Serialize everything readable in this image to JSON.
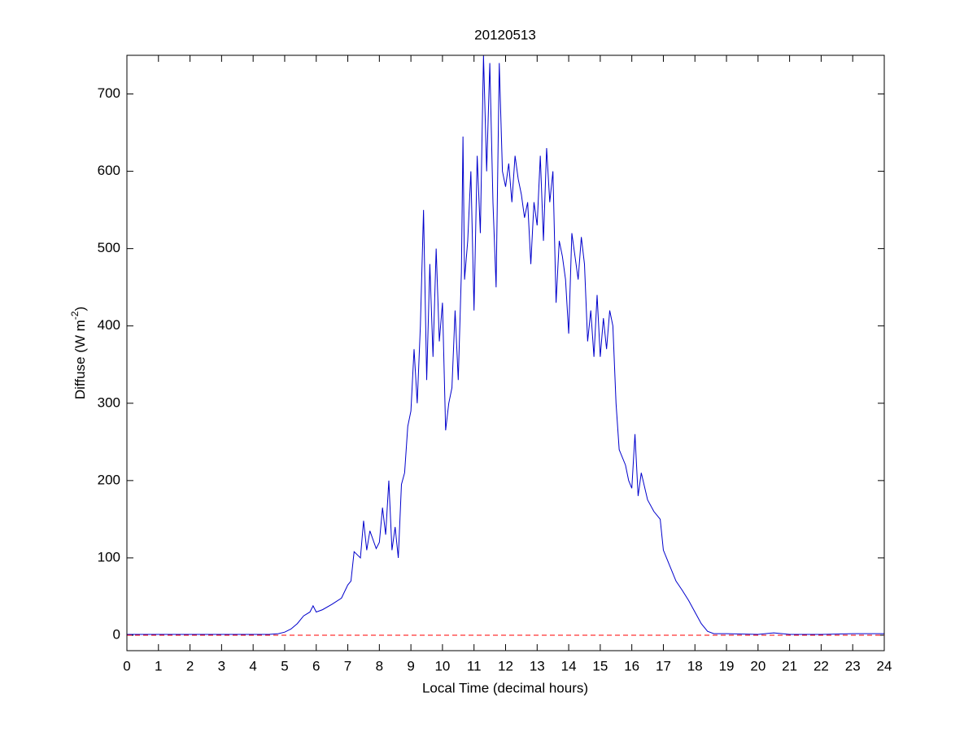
{
  "chart_data": {
    "type": "line",
    "title": "20120513",
    "xlabel": "Local Time (decimal hours)",
    "ylabel": [
      "Diffuse (W m",
      "-2",
      ")"
    ],
    "x": [
      0,
      1,
      2,
      3,
      4,
      4.5,
      4.8,
      5,
      5.2,
      5.4,
      5.6,
      5.8,
      5.9,
      6,
      6.2,
      6.5,
      6.8,
      7,
      7.1,
      7.2,
      7.4,
      7.5,
      7.6,
      7.7,
      7.9,
      8,
      8.1,
      8.2,
      8.3,
      8.4,
      8.5,
      8.6,
      8.7,
      8.8,
      8.9,
      9,
      9.1,
      9.2,
      9.3,
      9.4,
      9.5,
      9.6,
      9.7,
      9.8,
      9.9,
      10,
      10.1,
      10.2,
      10.3,
      10.4,
      10.5,
      10.6,
      10.65,
      10.7,
      10.8,
      10.9,
      11,
      11.1,
      11.2,
      11.3,
      11.4,
      11.5,
      11.6,
      11.7,
      11.8,
      11.9,
      12,
      12.1,
      12.2,
      12.3,
      12.4,
      12.5,
      12.6,
      12.7,
      12.8,
      12.9,
      13,
      13.1,
      13.2,
      13.3,
      13.4,
      13.5,
      13.6,
      13.7,
      13.8,
      13.9,
      14,
      14.1,
      14.2,
      14.3,
      14.4,
      14.5,
      14.6,
      14.7,
      14.8,
      14.9,
      15,
      15.1,
      15.2,
      15.3,
      15.4,
      15.5,
      15.6,
      15.8,
      15.9,
      16,
      16.1,
      16.2,
      16.3,
      16.5,
      16.7,
      16.9,
      17,
      17.2,
      17.4,
      17.6,
      17.8,
      18,
      18.2,
      18.4,
      18.6,
      19,
      20,
      20.5,
      21,
      22,
      23,
      24
    ],
    "series": [
      {
        "name": "Diffuse",
        "color": "#0000cc",
        "values": [
          1,
          1,
          1,
          1,
          1,
          1,
          2,
          4,
          8,
          15,
          25,
          30,
          38,
          30,
          33,
          40,
          48,
          65,
          70,
          108,
          100,
          148,
          110,
          135,
          112,
          120,
          165,
          130,
          200,
          110,
          140,
          100,
          195,
          210,
          270,
          290,
          370,
          300,
          400,
          550,
          330,
          480,
          360,
          500,
          380,
          430,
          265,
          300,
          320,
          420,
          330,
          470,
          645,
          460,
          510,
          600,
          420,
          620,
          520,
          750,
          600,
          740,
          560,
          450,
          740,
          600,
          580,
          610,
          560,
          620,
          590,
          570,
          540,
          560,
          480,
          560,
          530,
          620,
          510,
          630,
          560,
          600,
          430,
          510,
          490,
          460,
          390,
          520,
          490,
          460,
          515,
          480,
          380,
          420,
          360,
          440,
          360,
          410,
          370,
          420,
          400,
          300,
          240,
          220,
          200,
          190,
          260,
          180,
          210,
          175,
          160,
          150,
          110,
          90,
          70,
          58,
          45,
          30,
          15,
          5,
          2,
          2,
          1,
          3,
          1,
          1,
          2,
          2
        ]
      }
    ],
    "reference_line": {
      "value": 0,
      "color": "#ff0000",
      "dashed": true
    },
    "xlim": [
      0,
      24
    ],
    "xticks": [
      0,
      1,
      2,
      3,
      4,
      5,
      6,
      7,
      8,
      9,
      10,
      11,
      12,
      13,
      14,
      15,
      16,
      17,
      18,
      19,
      20,
      21,
      22,
      23,
      24
    ],
    "ylim": [
      -20,
      750
    ],
    "yticks": [
      0,
      100,
      200,
      300,
      400,
      500,
      600,
      700
    ],
    "grid": false
  }
}
